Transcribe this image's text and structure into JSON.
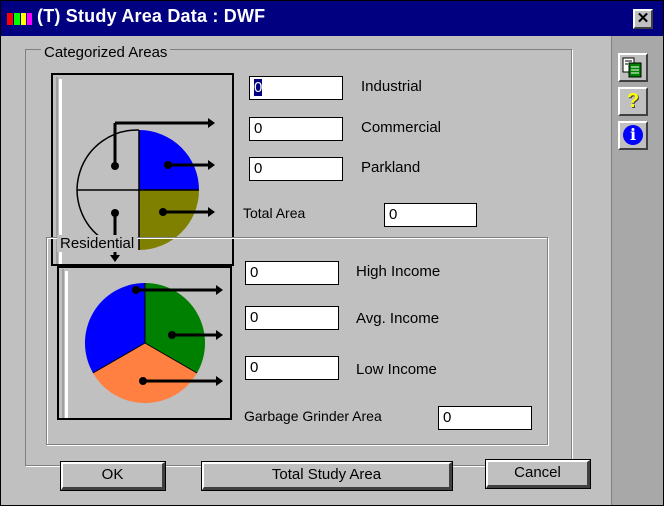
{
  "window": {
    "title": "(T) Study Area Data : DWF",
    "close_glyph": "✕"
  },
  "categorized": {
    "legend": "Categorized Areas",
    "industrial": {
      "label": "Industrial",
      "value": "0"
    },
    "commercial": {
      "label": "Commercial",
      "value": "0"
    },
    "parkland": {
      "label": "Parkland",
      "value": "0"
    }
  },
  "total_area": {
    "label": "Total Area",
    "value": "0"
  },
  "residential": {
    "legend": "Residential",
    "high": {
      "label": "High Income",
      "value": "0"
    },
    "avg": {
      "label": "Avg. Income",
      "value": "0"
    },
    "low": {
      "label": "Low Income",
      "value": "0"
    }
  },
  "garbage": {
    "label": "Garbage Grinder Area",
    "value": "0"
  },
  "buttons": {
    "ok": "OK",
    "total_study": "Total Study Area",
    "cancel": "Cancel"
  },
  "side": {
    "help_glyph": "?",
    "info_glyph": "i"
  },
  "colors": {
    "title_bar": "#000080",
    "pie_blue": "#0000ff",
    "pie_olive": "#808000",
    "pie_green": "#008000",
    "pie_orange": "#ff8040"
  }
}
